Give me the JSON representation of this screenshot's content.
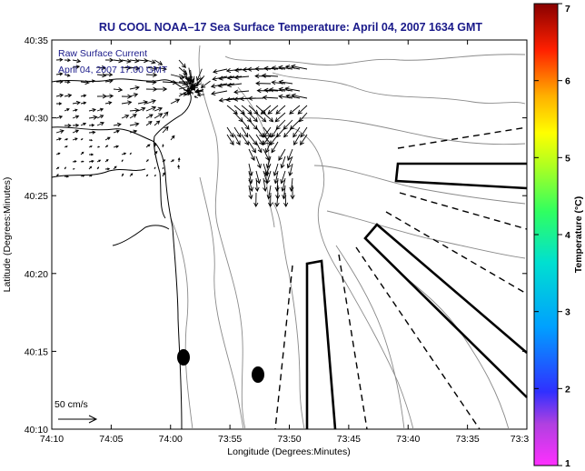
{
  "title": "RU COOL  NOAA–17  Sea Surface Temperature:  April 04, 2007 1634 GMT",
  "legend": {
    "line1": "Raw Surface Current",
    "line2": "April 04, 2007 17:00 GMT",
    "scale_label": "50 cm/s"
  },
  "axes": {
    "xlabel": "Longitude (Degrees:Minutes)",
    "ylabel": "Latitude (Degrees:Minutes)",
    "x_ticks": [
      "74:10",
      "74:05",
      "74:00",
      "73:55",
      "73:50",
      "73:45",
      "73:40",
      "73:35",
      "73:3"
    ],
    "y_ticks": [
      "40:35",
      "40:30",
      "40:25",
      "40:20",
      "40:15",
      "40:10"
    ]
  },
  "colorbar": {
    "label": "Temperature (°C)",
    "ticks": [
      "7",
      "6",
      "5",
      "4",
      "3",
      "2",
      "1"
    ],
    "range": [
      1,
      7
    ]
  },
  "map": {
    "type": "sea-surface-temperature-map",
    "background": "white",
    "lon_range": [
      "74:10",
      "73:30"
    ],
    "lat_range": [
      "40:10",
      "40:35"
    ],
    "features": [
      "coastline",
      "bathymetry contours",
      "surface current vectors",
      "cable/exclusion zone outlines",
      "two black markers"
    ]
  }
}
